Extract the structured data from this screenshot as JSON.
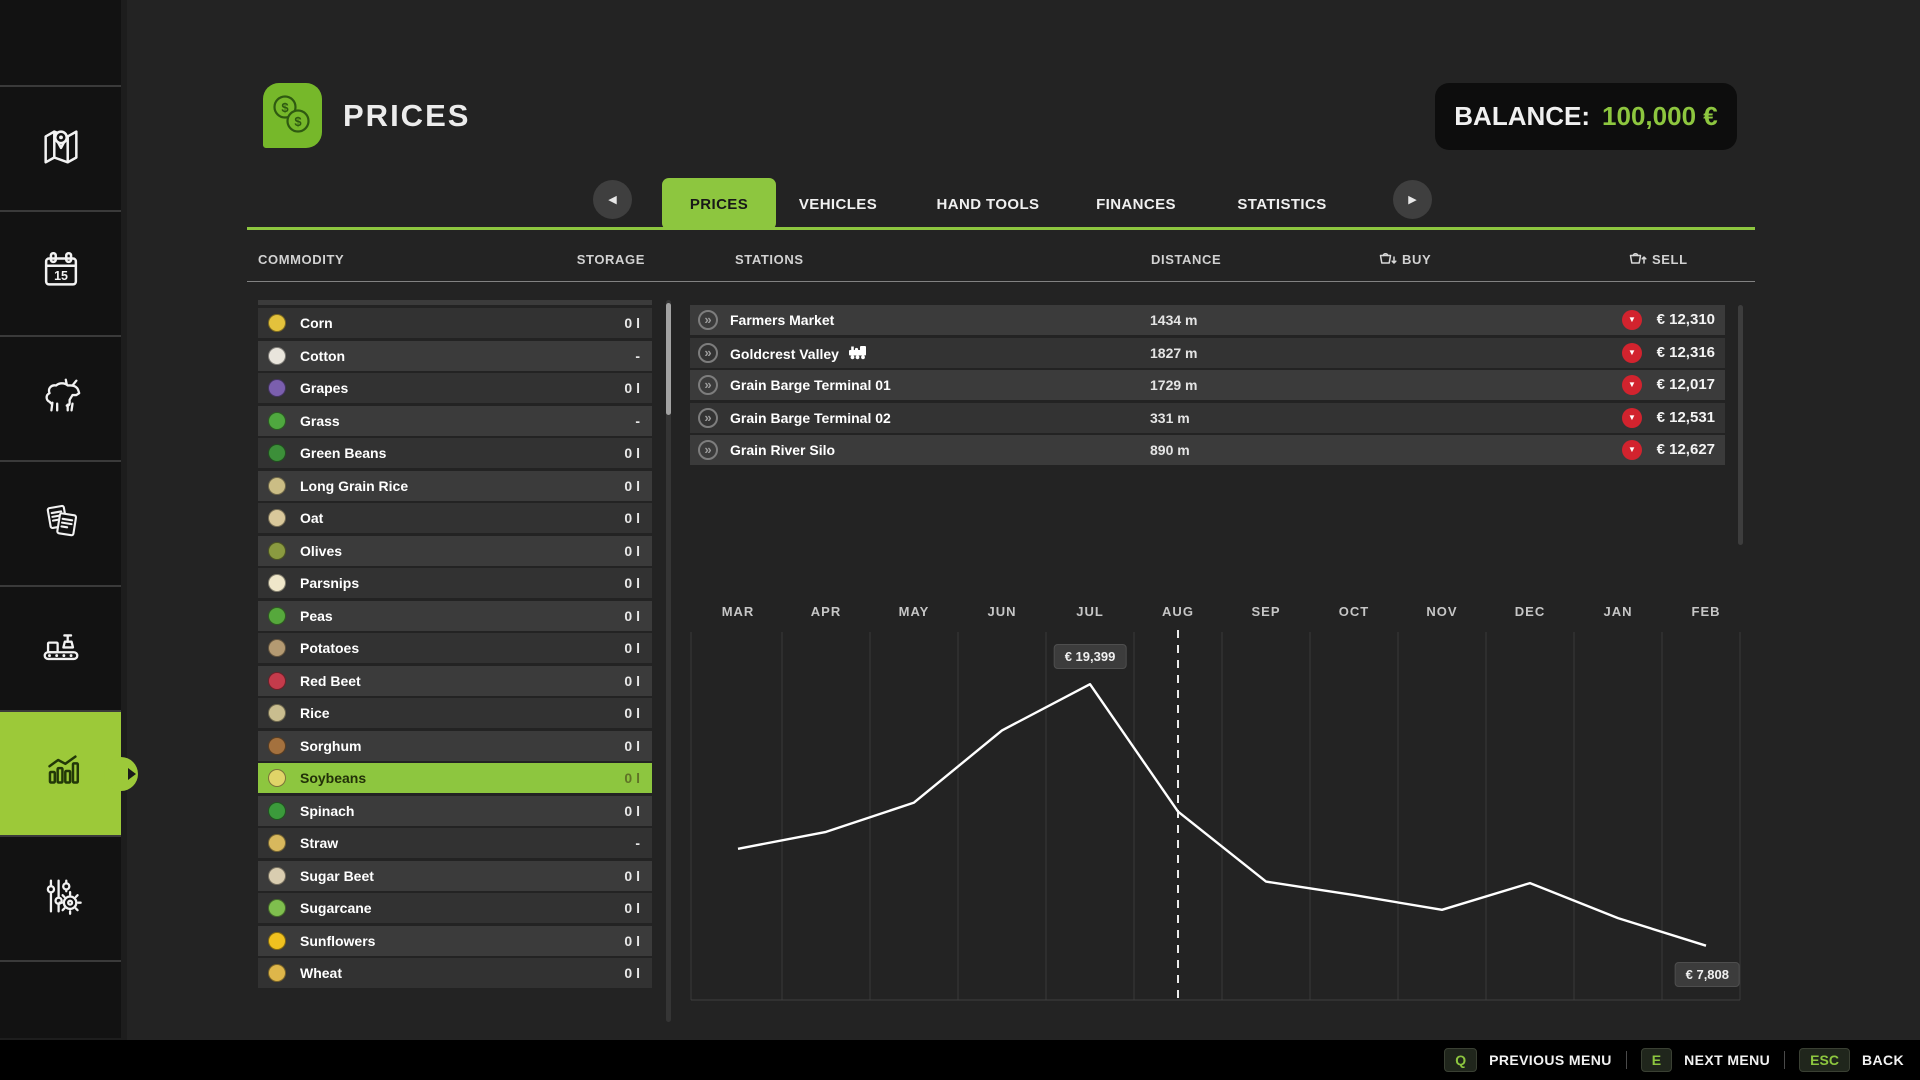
{
  "colors": {
    "accent_green": "#8dc63f",
    "sidebar_green": "#9cc939",
    "icon_green": "#76b82a",
    "trend_red": "#d2232e"
  },
  "header": {
    "title": "PRICES",
    "title_icon": "coins-icon",
    "balance_label": "BALANCE:",
    "balance_value": "100,000 €"
  },
  "tabs": {
    "prev_arrow": "chevron-left-icon",
    "next_arrow": "chevron-right-icon",
    "items": [
      {
        "label": "PRICES",
        "active": true
      },
      {
        "label": "VEHICLES",
        "active": false
      },
      {
        "label": "HAND TOOLS",
        "active": false
      },
      {
        "label": "FINANCES",
        "active": false
      },
      {
        "label": "STATISTICS",
        "active": false
      }
    ]
  },
  "table_headers": {
    "commodity": "COMMODITY",
    "storage": "STORAGE",
    "stations": "STATIONS",
    "distance": "DISTANCE",
    "buy": "BUY",
    "sell": "SELL",
    "buy_icon": "basket-down-icon",
    "sell_icon": "basket-up-icon"
  },
  "commodities": [
    {
      "name": "Corn",
      "storage": "0 l",
      "icon": "corn-icon",
      "color": "#e3c23c",
      "selected": false
    },
    {
      "name": "Cotton",
      "storage": "-",
      "icon": "cotton-icon",
      "color": "#e9e5dc",
      "selected": false
    },
    {
      "name": "Grapes",
      "storage": "0 l",
      "icon": "grapes-icon",
      "color": "#7b5fae",
      "selected": false
    },
    {
      "name": "Grass",
      "storage": "-",
      "icon": "grass-icon",
      "color": "#4fa83f",
      "selected": false
    },
    {
      "name": "Green Beans",
      "storage": "0 l",
      "icon": "green-beans-icon",
      "color": "#3c8f39",
      "selected": false
    },
    {
      "name": "Long Grain Rice",
      "storage": "0 l",
      "icon": "long-grain-rice-icon",
      "color": "#cbbd85",
      "selected": false
    },
    {
      "name": "Oat",
      "storage": "0 l",
      "icon": "oat-icon",
      "color": "#d9c89b",
      "selected": false
    },
    {
      "name": "Olives",
      "storage": "0 l",
      "icon": "olives-icon",
      "color": "#8a9a40",
      "selected": false
    },
    {
      "name": "Parsnips",
      "storage": "0 l",
      "icon": "parsnips-icon",
      "color": "#efe7ca",
      "selected": false
    },
    {
      "name": "Peas",
      "storage": "0 l",
      "icon": "peas-icon",
      "color": "#56a83c",
      "selected": false
    },
    {
      "name": "Potatoes",
      "storage": "0 l",
      "icon": "potatoes-icon",
      "color": "#b49a72",
      "selected": false
    },
    {
      "name": "Red Beet",
      "storage": "0 l",
      "icon": "red-beet-icon",
      "color": "#c43b4b",
      "selected": false
    },
    {
      "name": "Rice",
      "storage": "0 l",
      "icon": "rice-icon",
      "color": "#c9bd8f",
      "selected": false
    },
    {
      "name": "Sorghum",
      "storage": "0 l",
      "icon": "sorghum-icon",
      "color": "#a4713e",
      "selected": false
    },
    {
      "name": "Soybeans",
      "storage": "0 l",
      "icon": "soybeans-icon",
      "color": "#e0d468",
      "selected": true
    },
    {
      "name": "Spinach",
      "storage": "0 l",
      "icon": "spinach-icon",
      "color": "#3b9a3b",
      "selected": false
    },
    {
      "name": "Straw",
      "storage": "-",
      "icon": "straw-icon",
      "color": "#d8b85d",
      "selected": false
    },
    {
      "name": "Sugar Beet",
      "storage": "0 l",
      "icon": "sugar-beet-icon",
      "color": "#d9cdb0",
      "selected": false
    },
    {
      "name": "Sugarcane",
      "storage": "0 l",
      "icon": "sugarcane-icon",
      "color": "#7fbf4e",
      "selected": false
    },
    {
      "name": "Sunflowers",
      "storage": "0 l",
      "icon": "sunflowers-icon",
      "color": "#f0c11f",
      "selected": false
    },
    {
      "name": "Wheat",
      "storage": "0 l",
      "icon": "wheat-icon",
      "color": "#deb64a",
      "selected": false
    }
  ],
  "stations": [
    {
      "name": "Farmers Market",
      "rail": false,
      "distance": "1434 m",
      "sell_price": "€ 12,310",
      "trend": "down"
    },
    {
      "name": "Goldcrest Valley",
      "rail": true,
      "distance": "1827 m",
      "sell_price": "€ 12,316",
      "trend": "down"
    },
    {
      "name": "Grain Barge Terminal 01",
      "rail": false,
      "distance": "1729 m",
      "sell_price": "€ 12,017",
      "trend": "down"
    },
    {
      "name": "Grain Barge Terminal 02",
      "rail": false,
      "distance": "331 m",
      "sell_price": "€ 12,531",
      "trend": "down"
    },
    {
      "name": "Grain River Silo",
      "rail": false,
      "distance": "890 m",
      "sell_price": "€ 12,627",
      "trend": "down"
    }
  ],
  "chart_data": {
    "type": "line",
    "title": "",
    "x": [
      "MAR",
      "APR",
      "MAY",
      "JUN",
      "JUL",
      "AUG",
      "SEP",
      "OCT",
      "NOV",
      "DEC",
      "JAN",
      "FEB"
    ],
    "values": [
      12100,
      12850,
      14150,
      17350,
      19399,
      13750,
      10650,
      10050,
      9400,
      10580,
      9030,
      7808
    ],
    "ylim": [
      5400,
      21800
    ],
    "grid": "vertical-only",
    "line_color": "#ffffff",
    "current_month": "AUG",
    "annotations": {
      "peak": {
        "month": "JUL",
        "label": "€ 19,399"
      },
      "latest": {
        "month": "FEB",
        "label": "€ 7,808"
      }
    }
  },
  "sidebar": {
    "items": [
      {
        "icon": "map-icon",
        "active": false
      },
      {
        "icon": "calendar-icon",
        "active": false
      },
      {
        "icon": "animals-icon",
        "active": false
      },
      {
        "icon": "contracts-icon",
        "active": false
      },
      {
        "icon": "production-icon",
        "active": false
      },
      {
        "icon": "statistics-icon",
        "active": true
      },
      {
        "icon": "settings-icon",
        "active": false
      }
    ]
  },
  "footer": {
    "hints": [
      {
        "key": "Q",
        "label": "PREVIOUS MENU"
      },
      {
        "key": "E",
        "label": "NEXT MENU"
      },
      {
        "key": "ESC",
        "label": "BACK"
      }
    ]
  }
}
